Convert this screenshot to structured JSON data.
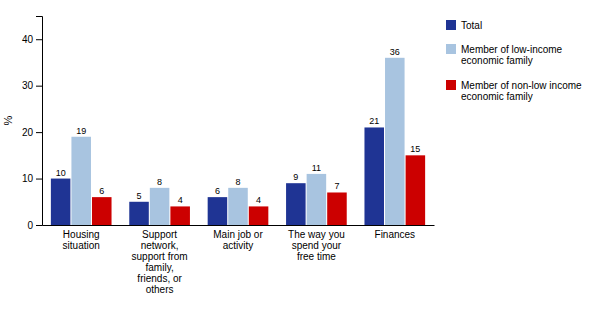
{
  "chart_data": {
    "type": "bar",
    "categories": [
      "Housing\nsituation",
      "Support\nnetwork,\nsupport from\nfamily,\nfriends, or\nothers",
      "Main job or\nactivity",
      "The way you\nspend your\nfree time",
      "Finances"
    ],
    "series": [
      {
        "name": "Total",
        "color": "#1F3494",
        "values": [
          10,
          5,
          6,
          9,
          21
        ]
      },
      {
        "name": "Member of low-income\neconomic family",
        "color": "#A8C4E0",
        "values": [
          19,
          8,
          8,
          11,
          36
        ]
      },
      {
        "name": "Member of non-low income\neconomic family",
        "color": "#CC0000",
        "values": [
          6,
          4,
          4,
          7,
          15
        ]
      }
    ],
    "ylabel": "%",
    "ylim": [
      0,
      45
    ],
    "yticks": [
      0,
      10,
      20,
      30,
      40
    ],
    "grid": false,
    "legend": "right",
    "data_labels": true
  }
}
